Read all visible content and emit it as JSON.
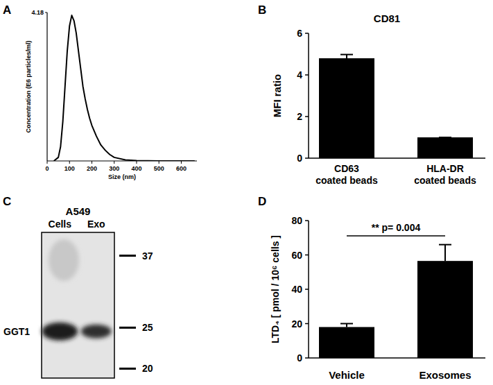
{
  "chart_data": [
    {
      "panel": "A",
      "type": "line",
      "x_label": "Size (nm)",
      "y_label": "Concentration (E6 particles/ml)",
      "xlim": [
        0,
        670
      ],
      "xticks": [
        0,
        100,
        200,
        300,
        400,
        500,
        600
      ],
      "ylim": [
        0,
        4.18
      ],
      "yticks": [
        4.18
      ],
      "x": [
        30,
        50,
        60,
        70,
        80,
        90,
        100,
        110,
        120,
        130,
        140,
        150,
        160,
        170,
        180,
        190,
        200,
        220,
        240,
        260,
        280,
        300,
        350,
        400,
        500,
        600,
        660
      ],
      "values": [
        0,
        0.1,
        0.4,
        1.1,
        2.1,
        3.1,
        3.8,
        4.1,
        3.95,
        3.6,
        3.1,
        2.6,
        2.1,
        1.75,
        1.45,
        1.2,
        1.0,
        0.7,
        0.45,
        0.3,
        0.18,
        0.1,
        0.03,
        0.01,
        0,
        0,
        0
      ],
      "color": "#000000"
    },
    {
      "panel": "B",
      "type": "bar",
      "title": "CD81",
      "y_label": "MFI ratio",
      "categories": [
        "CD63 coated beads",
        "HLA-DR coated beads"
      ],
      "values": [
        4.8,
        1.0
      ],
      "errors": [
        0.18,
        0
      ],
      "ylim": [
        0,
        6
      ],
      "yticks": [
        0,
        2,
        4,
        6
      ],
      "color": "#000000"
    },
    {
      "panel": "C",
      "type": "blot",
      "title": "A549",
      "lanes": [
        "Cells",
        "Exo"
      ],
      "band_label": "GGT1",
      "band_kda": 24.5,
      "ylim": [
        19,
        42
      ],
      "log": "y",
      "yticks": [
        37,
        25,
        20
      ]
    },
    {
      "panel": "D",
      "type": "bar",
      "y_label": "LTD₄ [ pmol / 10⁶ cells ]",
      "categories": [
        "Vehicle",
        "Exosomes"
      ],
      "values": [
        18,
        56.5
      ],
      "errors": [
        2,
        9.5
      ],
      "ylim": [
        0,
        80
      ],
      "yticks": [
        0,
        20,
        40,
        60,
        80
      ],
      "color": "#000000",
      "annotation": "** p= 0.004"
    }
  ]
}
